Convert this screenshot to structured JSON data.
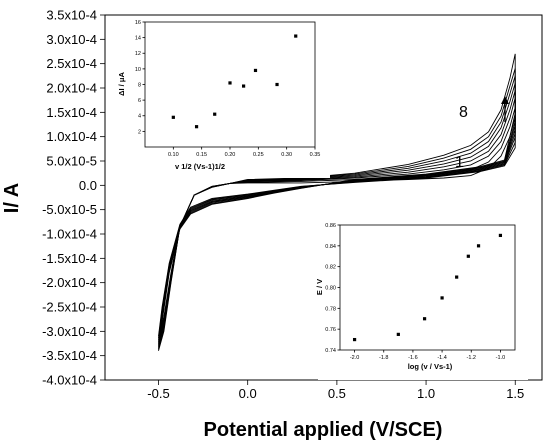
{
  "chart_data": [
    {
      "type": "line",
      "xlabel": "Potential applied (V/SCE)",
      "ylabel": "I/ A",
      "xlim": [
        -0.8,
        1.65
      ],
      "ylim": [
        -0.0004,
        0.00035
      ],
      "x_ticks": [
        -0.5,
        0.0,
        0.5,
        1.0,
        1.5
      ],
      "x_tick_labels": [
        "-0.5",
        "0.0",
        "0.5",
        "1.0",
        "1.5"
      ],
      "y_ticks": [
        0.00035,
        0.0003,
        0.00025,
        0.0002,
        0.00015,
        0.0001,
        5e-05,
        0,
        -5e-05,
        -0.0001,
        -0.00015,
        -0.0002,
        -0.00025,
        -0.0003,
        -0.00035,
        -0.0004
      ],
      "y_tick_labels": [
        "3.5x10-4",
        "3.0x10-4",
        "2.5x10-4",
        "2.0x10-4",
        "1.5x10-4",
        "1.0x10-4",
        "5.0x10-5",
        "0.0",
        "-5.0x10-5",
        "-1.0x10-4",
        "-1.5x10-4",
        "-2.0x10-4",
        "-2.5x10-4",
        "-3.0x10-4",
        "-3.5x10-4",
        "-4.0x10-4"
      ],
      "cycles": 8,
      "series": [
        {
          "x": [
            0.0,
            0.3,
            0.6,
            0.9,
            1.1,
            1.25,
            1.35,
            1.42,
            1.47,
            1.5
          ],
          "y": [
            5e-06,
            5e-06,
            8e-06,
            1.2e-05,
            1.5e-05,
            2e-05,
            3.5e-05,
            6e-05,
            0.0001,
            0.00014
          ]
        },
        {
          "x": [
            0.0,
            0.3,
            0.6,
            0.9,
            1.1,
            1.25,
            1.35,
            1.42,
            1.47,
            1.5
          ],
          "y": [
            6e-06,
            8e-06,
            1.2e-05,
            1.8e-05,
            2.5e-05,
            3.2e-05,
            4.8e-05,
            7.6e-05,
            0.00012,
            0.00016
          ]
        },
        {
          "x": [
            0.0,
            0.3,
            0.6,
            0.9,
            1.1,
            1.25,
            1.35,
            1.42,
            1.47,
            1.5
          ],
          "y": [
            7e-06,
            1e-05,
            1.5e-05,
            2.3e-05,
            3.2e-05,
            4.2e-05,
            6e-05,
            9e-05,
            0.000138,
            0.00018
          ]
        },
        {
          "x": [
            0.0,
            0.3,
            0.6,
            0.9,
            1.1,
            1.25,
            1.35,
            1.42,
            1.47,
            1.5
          ],
          "y": [
            8e-06,
            1.1e-05,
            1.7e-05,
            2.7e-05,
            3.8e-05,
            5e-05,
            7e-05,
            0.000104,
            0.000155,
            0.000195
          ]
        },
        {
          "x": [
            0.0,
            0.3,
            0.6,
            0.9,
            1.1,
            1.25,
            1.35,
            1.42,
            1.47,
            1.5
          ],
          "y": [
            9e-06,
            1.2e-05,
            1.9e-05,
            3.1e-05,
            4.4e-05,
            5.8e-05,
            8e-05,
            0.000118,
            0.000172,
            0.00021
          ]
        },
        {
          "x": [
            0.0,
            0.3,
            0.6,
            0.9,
            1.1,
            1.25,
            1.35,
            1.42,
            1.47,
            1.5
          ],
          "y": [
            1e-05,
            1.3e-05,
            2.1e-05,
            3.5e-05,
            5e-05,
            6.6e-05,
            9e-05,
            0.00013,
            0.000188,
            0.000225
          ]
        },
        {
          "x": [
            0.0,
            0.3,
            0.6,
            0.9,
            1.1,
            1.25,
            1.35,
            1.42,
            1.47,
            1.5
          ],
          "y": [
            1.1e-05,
            1.4e-05,
            2.3e-05,
            3.9e-05,
            5.6e-05,
            7.4e-05,
            0.0001,
            0.000142,
            0.000204,
            0.00024
          ]
        },
        {
          "x": [
            0.0,
            0.3,
            0.6,
            0.9,
            1.1,
            1.25,
            1.35,
            1.42,
            1.47,
            1.5
          ],
          "y": [
            1.2e-05,
            1.5e-05,
            2.5e-05,
            4.3e-05,
            6.2e-05,
            8.2e-05,
            0.00011,
            0.000155,
            0.00022,
            0.00027
          ]
        }
      ],
      "annotations": [
        {
          "text": "8",
          "x": 1.3,
          "y": 0.00015
        },
        {
          "text": "1",
          "x": 1.25,
          "y": 4.5e-05
        }
      ]
    },
    {
      "type": "scatter",
      "xlabel": "v 1/2 (Vs-1)1/2",
      "ylabel": "ΔI / μA",
      "xlim": [
        0.05,
        0.35
      ],
      "ylim": [
        0,
        16
      ],
      "x_ticks": [
        0.1,
        0.15,
        0.2,
        0.25,
        0.3,
        0.35
      ],
      "x_tick_labels": [
        "0.10",
        "0.15",
        "0.20",
        "0.25",
        "0.30",
        "0.35"
      ],
      "y_ticks": [
        2,
        4,
        6,
        8,
        10,
        12,
        14,
        16
      ],
      "y_tick_labels": [
        "2",
        "4",
        "6",
        "8",
        "10",
        "12",
        "14",
        "16"
      ],
      "x": [
        0.1,
        0.141,
        0.173,
        0.2,
        0.224,
        0.245,
        0.283,
        0.316
      ],
      "y": [
        3.8,
        2.6,
        4.2,
        8.2,
        7.8,
        9.8,
        8.0,
        14.2
      ]
    },
    {
      "type": "scatter",
      "xlabel": "log (v / Vs-1)",
      "ylabel": "E / V",
      "xlim": [
        -2.1,
        -0.9
      ],
      "ylim": [
        0.74,
        0.86
      ],
      "x_ticks": [
        -2.0,
        -1.8,
        -1.6,
        -1.4,
        -1.2,
        -1.0
      ],
      "x_tick_labels": [
        "-2.0",
        "-1.8",
        "-1.6",
        "-1.4",
        "-1.2",
        "-1.0"
      ],
      "y_ticks": [
        0.74,
        0.76,
        0.78,
        0.8,
        0.82,
        0.84,
        0.86
      ],
      "y_tick_labels": [
        "0.74",
        "0.76",
        "0.78",
        "0.80",
        "0.82",
        "0.84",
        "0.86"
      ],
      "x": [
        -2.0,
        -1.7,
        -1.52,
        -1.4,
        -1.3,
        -1.22,
        -1.15,
        -1.0
      ],
      "y": [
        0.75,
        0.755,
        0.77,
        0.79,
        0.81,
        0.83,
        0.84,
        0.85
      ]
    }
  ]
}
